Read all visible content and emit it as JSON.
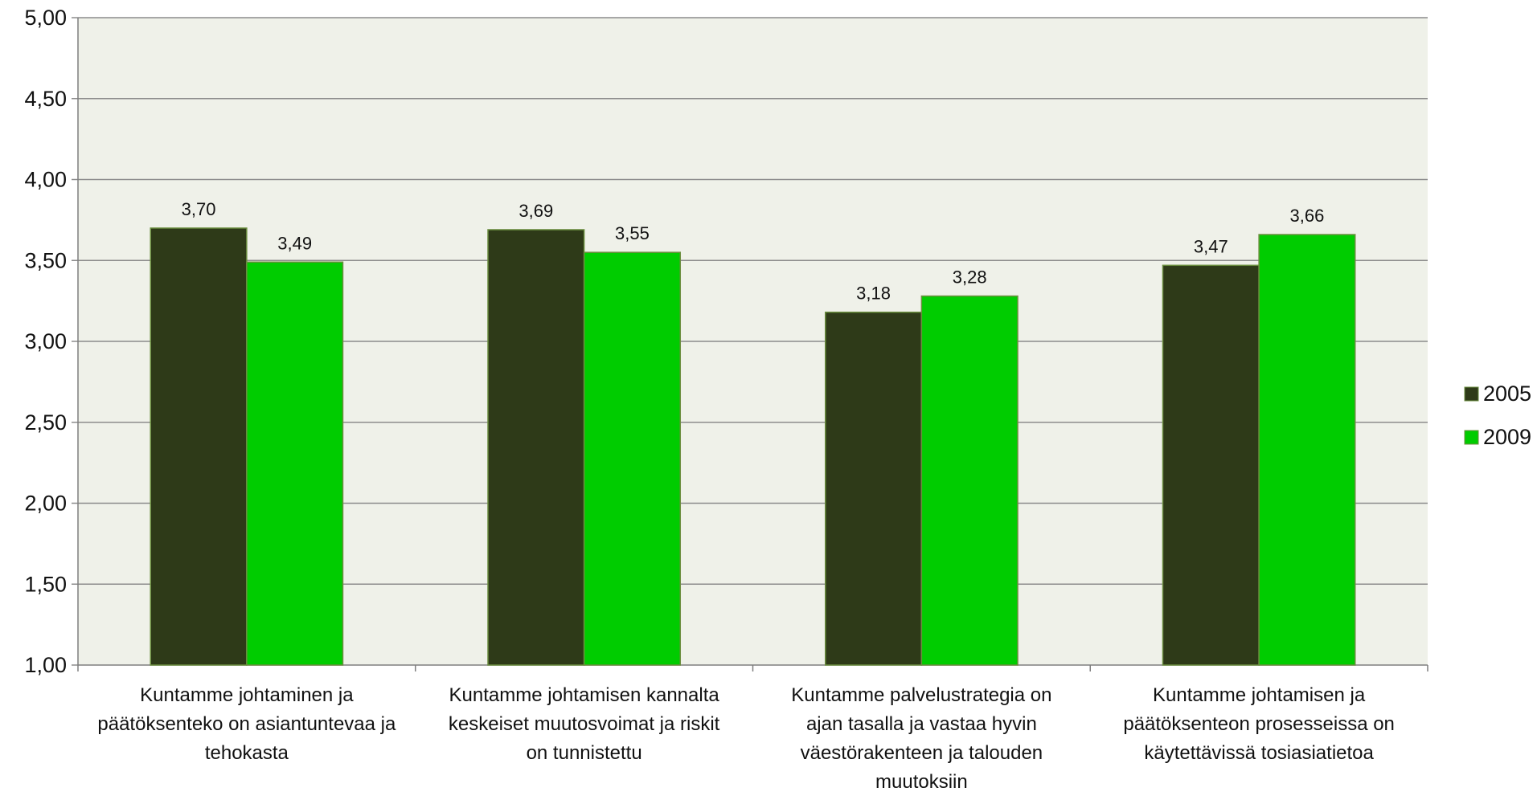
{
  "chart_data": {
    "type": "bar",
    "categories": [
      [
        "Kuntamme johtaminen ja",
        "päätöksenteko on asiantuntevaa ja",
        "tehokasta"
      ],
      [
        "Kuntamme johtamisen kannalta",
        "keskeiset muutosvoimat ja riskit",
        "on tunnistettu"
      ],
      [
        "Kuntamme palvelustrategia on",
        "ajan tasalla ja vastaa hyvin",
        "väestörakenteen ja talouden",
        "muutoksiin"
      ],
      [
        "Kuntamme johtamisen ja",
        "päätöksenteon prosesseissa on",
        "käytettävissä tosiasiatietoa"
      ]
    ],
    "series": [
      {
        "name": "2005",
        "color": "#2e3a18",
        "values": [
          3.7,
          3.69,
          3.18,
          3.47
        ],
        "labels": [
          "3,70",
          "3,69",
          "3,18",
          "3,47"
        ]
      },
      {
        "name": "2009",
        "color": "#00cc00",
        "values": [
          3.49,
          3.55,
          3.28,
          3.66
        ],
        "labels": [
          "3,49",
          "3,55",
          "3,28",
          "3,66"
        ]
      }
    ],
    "ylim": [
      1.0,
      5.0
    ],
    "yticks": [
      1.0,
      1.5,
      2.0,
      2.5,
      3.0,
      3.5,
      4.0,
      4.5,
      5.0
    ],
    "ytick_labels": [
      "1,00",
      "1,50",
      "2,00",
      "2,50",
      "3,00",
      "3,50",
      "4,00",
      "4,50",
      "5,00"
    ],
    "grid": true,
    "legend_position": "right",
    "plot_background": "#eff1e9",
    "gridline_color": "#8c8c8c"
  }
}
